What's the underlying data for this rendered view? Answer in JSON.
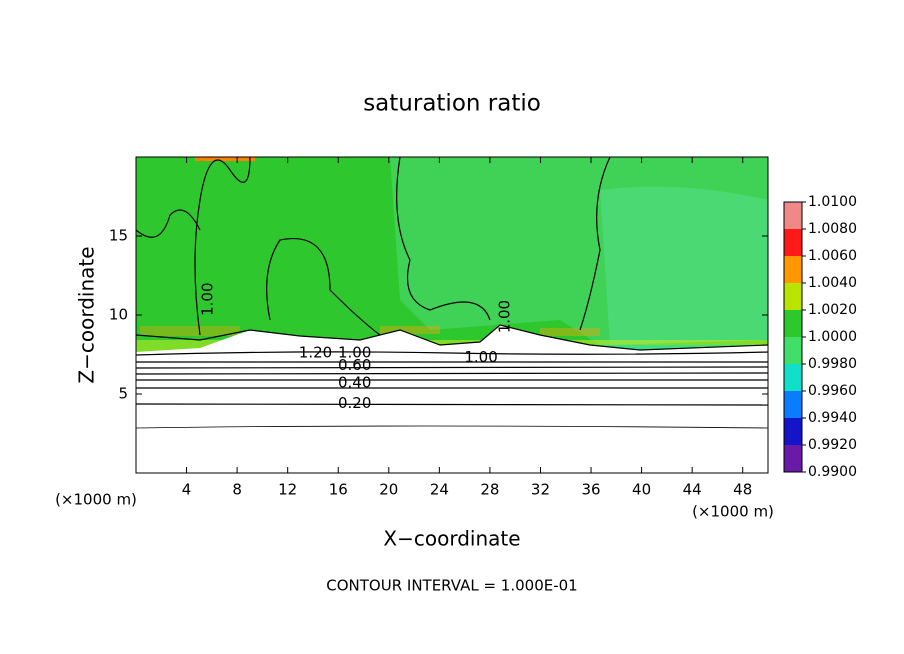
{
  "chart_data": {
    "type": "contour",
    "title": "saturation ratio",
    "x_label": "X−coordinate",
    "y_label": "Z−coordinate",
    "x_unit_left": "(×1000 m)",
    "x_unit_right": "(×1000 m)",
    "footer": "CONTOUR INTERVAL = 1.000E-01",
    "xlim": [
      0,
      50
    ],
    "ylim": [
      0,
      20
    ],
    "xticks": [
      4,
      8,
      12,
      16,
      20,
      24,
      28,
      32,
      36,
      40,
      44,
      48
    ],
    "yticks": [
      5,
      10,
      15
    ],
    "colorbar": {
      "levels": [
        0.99,
        0.992,
        0.994,
        0.996,
        0.998,
        1.0,
        1.002,
        1.004,
        1.006,
        1.008,
        1.01
      ],
      "colors": [
        "#6a1aa8",
        "#1414c8",
        "#0a7cff",
        "#10e0c8",
        "#40e068",
        "#2cc82c",
        "#b8e400",
        "#ff9800",
        "#ff1a1a",
        "#f08888"
      ],
      "ticks": [
        {
          "value": 1.01,
          "label": "1.0100"
        },
        {
          "value": 1.008,
          "label": "1.0080"
        },
        {
          "value": 1.006,
          "label": "1.0060"
        },
        {
          "value": 1.004,
          "label": "1.0040"
        },
        {
          "value": 1.002,
          "label": "1.0020"
        },
        {
          "value": 1.0,
          "label": "1.0000"
        },
        {
          "value": 0.998,
          "label": "0.9980"
        },
        {
          "value": 0.996,
          "label": "0.9960"
        },
        {
          "value": 0.994,
          "label": "0.9940"
        },
        {
          "value": 0.992,
          "label": "0.9920"
        },
        {
          "value": 0.99,
          "label": "0.9900"
        }
      ]
    },
    "contour_labels": [
      {
        "label": "1.00",
        "x": 5.7,
        "z": 11.0,
        "rotate": -90
      },
      {
        "label": "1.20",
        "x": 14.2,
        "z": 7.6,
        "rotate": 0
      },
      {
        "label": "1.00",
        "x": 17.3,
        "z": 7.6,
        "rotate": 0
      },
      {
        "label": "0.60",
        "x": 17.3,
        "z": 6.8,
        "rotate": 0
      },
      {
        "label": "0.40",
        "x": 17.3,
        "z": 5.7,
        "rotate": 0
      },
      {
        "label": "0.20",
        "x": 17.3,
        "z": 4.4,
        "rotate": 0
      },
      {
        "label": "1.00",
        "x": 27.3,
        "z": 7.3,
        "rotate": 0
      },
      {
        "label": "1.00",
        "x": 29.2,
        "z": 9.9,
        "rotate": -90
      }
    ]
  }
}
